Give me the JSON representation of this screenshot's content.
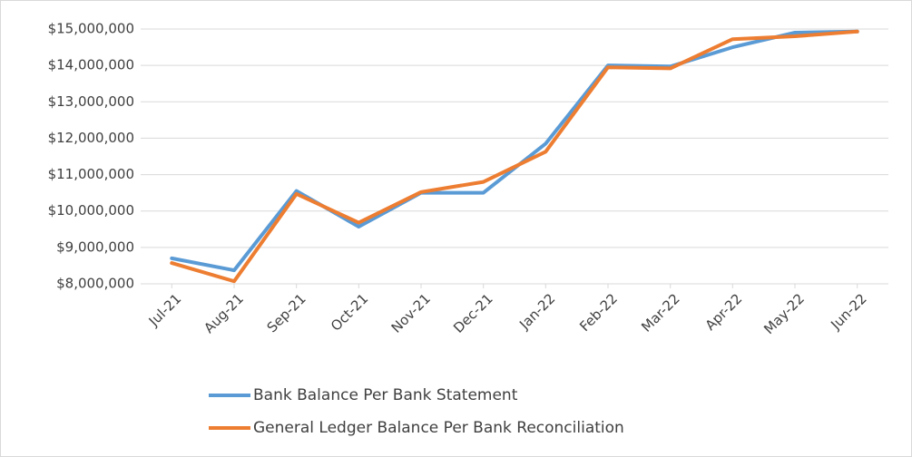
{
  "chart_data": {
    "type": "line",
    "categories": [
      "Jul-21",
      "Aug-21",
      "Sep-21",
      "Oct-21",
      "Nov-21",
      "Dec-21",
      "Jan-22",
      "Feb-22",
      "Mar-22",
      "Apr-22",
      "May-22",
      "Jun-22"
    ],
    "series": [
      {
        "name": "Bank Balance Per Bank Statement",
        "color": "#5b9bd5",
        "values": [
          8700000,
          8370000,
          10550000,
          9570000,
          10500000,
          10500000,
          11850000,
          14000000,
          13970000,
          14500000,
          14900000,
          14930000
        ]
      },
      {
        "name": "General Ledger Balance Per Bank Reconciliation",
        "color": "#ed7d31",
        "values": [
          8570000,
          8070000,
          10470000,
          9680000,
          10520000,
          10800000,
          11630000,
          13950000,
          13920000,
          14720000,
          14800000,
          14930000
        ]
      }
    ],
    "ylim": [
      8000000,
      15000000
    ],
    "yticks": [
      {
        "value": 8000000,
        "label": "$8,000,000"
      },
      {
        "value": 9000000,
        "label": "$9,000,000"
      },
      {
        "value": 10000000,
        "label": "$10,000,000"
      },
      {
        "value": 11000000,
        "label": "$11,000,000"
      },
      {
        "value": 12000000,
        "label": "$12,000,000"
      },
      {
        "value": 13000000,
        "label": "$13,000,000"
      },
      {
        "value": 14000000,
        "label": "$14,000,000"
      },
      {
        "value": 15000000,
        "label": "$15,000,000"
      }
    ],
    "grid": true,
    "legend": "bottom"
  }
}
